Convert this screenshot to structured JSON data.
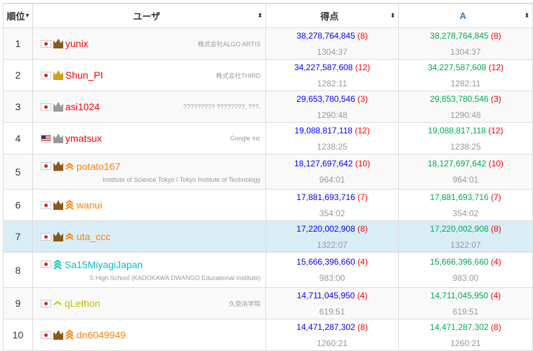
{
  "headers": {
    "rank": "順位",
    "user": "ユーザ",
    "score": "得点",
    "a": "A",
    "rank_sort": "▾",
    "sort": "⬍"
  },
  "colors": {
    "score": "#0000ff",
    "a": "#00aa55",
    "penalty": "#ff0000",
    "time": "#999999",
    "highlight": "#d9edf7"
  },
  "rows": [
    {
      "rank": "1",
      "flag": "jp",
      "crown": "bronze",
      "chev": 0,
      "name": "yunix",
      "color": "#ff0000",
      "aff": "株式会社ALGO ARTIS",
      "aff_pos": "top",
      "score": "38,278,764,845",
      "pen": "(8)",
      "time": "1304:37"
    },
    {
      "rank": "2",
      "flag": "jp",
      "crown": "gold",
      "chev": 0,
      "name": "Shun_PI",
      "color": "#ff0000",
      "aff": "株式会社THIRD",
      "aff_pos": "top",
      "score": "34,227,587,608",
      "pen": "(12)",
      "time": "1282:11"
    },
    {
      "rank": "3",
      "flag": "jp",
      "crown": "silver",
      "chev": 0,
      "name": "asi1024",
      "color": "#ff0000",
      "aff": "????????? ????????, ???.",
      "aff_pos": "top",
      "score": "29,653,780,546",
      "pen": "(3)",
      "time": "1290:48"
    },
    {
      "rank": "4",
      "flag": "us",
      "crown": "silver",
      "chev": 0,
      "name": "ymatsux",
      "color": "#ff0000",
      "aff": "Google Inc",
      "aff_pos": "top",
      "score": "19,088,817,118",
      "pen": "(12)",
      "time": "1238:25"
    },
    {
      "rank": "5",
      "flag": "jp",
      "crown": "bronze",
      "chev": 2,
      "name": "potato167",
      "color": "#ff8000",
      "aff": "Institute of Science Tokyo / Tokyo Institute of Technology",
      "aff_pos": "bot",
      "score": "18,127,697,642",
      "pen": "(10)",
      "time": "964:01"
    },
    {
      "rank": "6",
      "flag": "jp",
      "crown": "bronze",
      "chev": 3,
      "name": "wanui",
      "color": "#ff8000",
      "aff": "",
      "aff_pos": "top",
      "score": "17,881,693,716",
      "pen": "(7)",
      "time": "354:02"
    },
    {
      "rank": "7",
      "flag": "jp",
      "crown": "bronze",
      "chev": 2,
      "name": "uta_ccc",
      "color": "#ff8000",
      "aff": "",
      "aff_pos": "top",
      "score": "17,220,002,908",
      "pen": "(8)",
      "time": "1322:07",
      "highlight": true
    },
    {
      "rank": "8",
      "flag": "jp",
      "crown": "",
      "chev": 3,
      "name": "Sa15MiyagiJapan",
      "color": "#00c0c0",
      "aff": "S High School (KADOKAWA DWANGO Educational Institute)",
      "aff_pos": "bot",
      "score": "15,666,396,660",
      "pen": "(4)",
      "time": "983:00"
    },
    {
      "rank": "9",
      "flag": "jp",
      "crown": "",
      "chev": 1,
      "name": "qLethon",
      "color": "#c0c000",
      "aff": "久奈浜学院",
      "aff_pos": "top",
      "score": "14,711,045,950",
      "pen": "(4)",
      "time": "619:51"
    },
    {
      "rank": "10",
      "flag": "jp",
      "crown": "bronze",
      "chev": 3,
      "name": "dn6049949",
      "color": "#ff8000",
      "aff": "",
      "aff_pos": "top",
      "score": "14,471,287,302",
      "pen": "(8)",
      "time": "1260:21"
    }
  ]
}
